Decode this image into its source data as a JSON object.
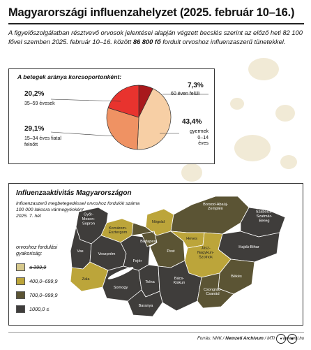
{
  "title": "Magyarországi influenzahelyzet (2025. február 10–16.)",
  "intro": {
    "before": "A figyelőszolgálatban résztvevő orvosok jelentései alapján végzett becslés szerint az előző heti 82 100 fővel szemben 2025. február 10–16. között ",
    "highlight": "86 800 fő",
    "after": " fordult orvoshoz influenzaszerű tünetekkel."
  },
  "chart_data": [
    {
      "type": "pie",
      "title": "A betegek aránya korcsoportonként:",
      "slices": [
        {
          "label": "60 éven felüli",
          "value": 7.3,
          "value_label": "7,3%",
          "color": "#a8191c"
        },
        {
          "label": "gyermek 0–14 éves",
          "value": 43.4,
          "value_label": "43,4%",
          "color": "#f7cfa5"
        },
        {
          "label": "15–34 éves fiatal felnőtt",
          "value": 29.1,
          "value_label": "29,1%",
          "color": "#ef9263"
        },
        {
          "label": "35–59 évesek",
          "value": 20.2,
          "value_label": "20,2%",
          "color": "#e8332e"
        }
      ]
    },
    {
      "type": "choropleth",
      "title": "Influenzaaktivitás Magyarországon",
      "subtitle": [
        "Influenzaszerű megbetegedéssel orvoshoz fordulók száma",
        "100 000 lakosra vármegyénként",
        "2025. 7. hét"
      ],
      "legend": {
        "title": [
          "orvoshoz fordulási",
          "gyakoriság:"
        ],
        "classes": [
          {
            "label": "≤ 399,9",
            "color": "#d6c88c",
            "strike": true
          },
          {
            "label": "400,0–699,9",
            "color": "#bca53a",
            "strike": false
          },
          {
            "label": "700,0–999,9",
            "color": "#5b5434",
            "strike": false
          },
          {
            "label": "1000,0 ≤",
            "color": "#3f3d3b",
            "strike": false
          }
        ]
      },
      "regions": [
        {
          "label": "Győr-\nMoson-\nSopron",
          "class": 3
        },
        {
          "label": "Komárom-\nEsztergom",
          "class": 1
        },
        {
          "label": "Nógrád",
          "class": 1
        },
        {
          "label": "Borsod-Abaúj-\nZemplén",
          "class": 2
        },
        {
          "label": "Szabolcs-\nSzatmár-\nBereg",
          "class": 3
        },
        {
          "label": "Vas",
          "class": 3
        },
        {
          "label": "Veszprém",
          "class": 3
        },
        {
          "label": "Fejér",
          "class": 3
        },
        {
          "label": "Budapest",
          "class": 2
        },
        {
          "label": "Pest",
          "class": 2
        },
        {
          "label": "Heves",
          "class": 1
        },
        {
          "label": "Hajdú-Bihar",
          "class": 3
        },
        {
          "label": "Jász-\nNagykun-\nSzolnok",
          "class": 1
        },
        {
          "label": "Zala",
          "class": 1
        },
        {
          "label": "Somogy",
          "class": 3
        },
        {
          "label": "Tolna",
          "class": 3
        },
        {
          "label": "Bács-\nKiskun",
          "class": 3
        },
        {
          "label": "Békés",
          "class": 2
        },
        {
          "label": "Csongrád-\nCsanád",
          "class": 2
        },
        {
          "label": "Baranya",
          "class": 3
        }
      ]
    }
  ],
  "footer": {
    "prefix": "Forrás: NNK / ",
    "archive": "Nemzeti Archívum",
    "suffix": " / MTI",
    "web": "www.mti.hu"
  }
}
